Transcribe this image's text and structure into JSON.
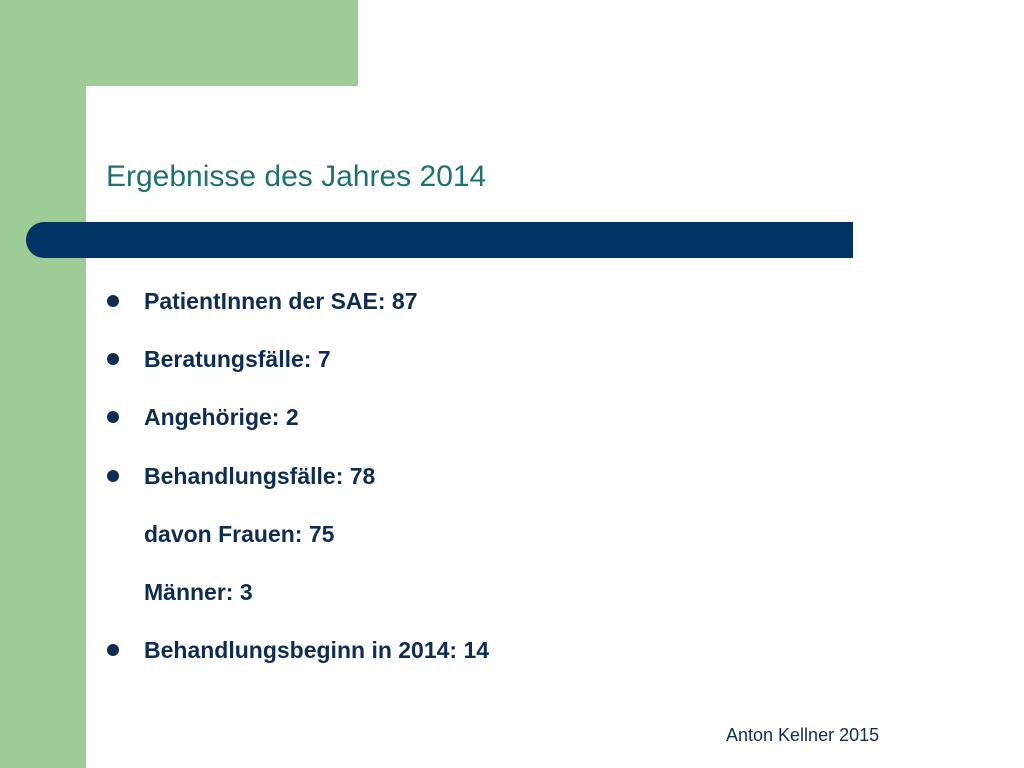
{
  "slide": {
    "title": "Ergebnisse des Jahres 2014",
    "items": [
      {
        "text": "PatientInnen der SAE: 87",
        "bullet": true
      },
      {
        "text": "Beratungsfälle: 7",
        "bullet": true
      },
      {
        "text": "Angehörige: 2",
        "bullet": true
      },
      {
        "text": "Behandlungsfälle: 78",
        "bullet": true
      },
      {
        "text": "davon Frauen: 75",
        "bullet": false
      },
      {
        "text": "Männer: 3",
        "bullet": false
      },
      {
        "text": "Behandlungsbeginn in 2014: 14",
        "bullet": true
      }
    ],
    "footer": "Anton Kellner 2015"
  },
  "colors": {
    "accent_green": "#9dcc96",
    "title_bar": "#003465",
    "title_text": "#1f7070",
    "body_text": "#0f2d52"
  }
}
